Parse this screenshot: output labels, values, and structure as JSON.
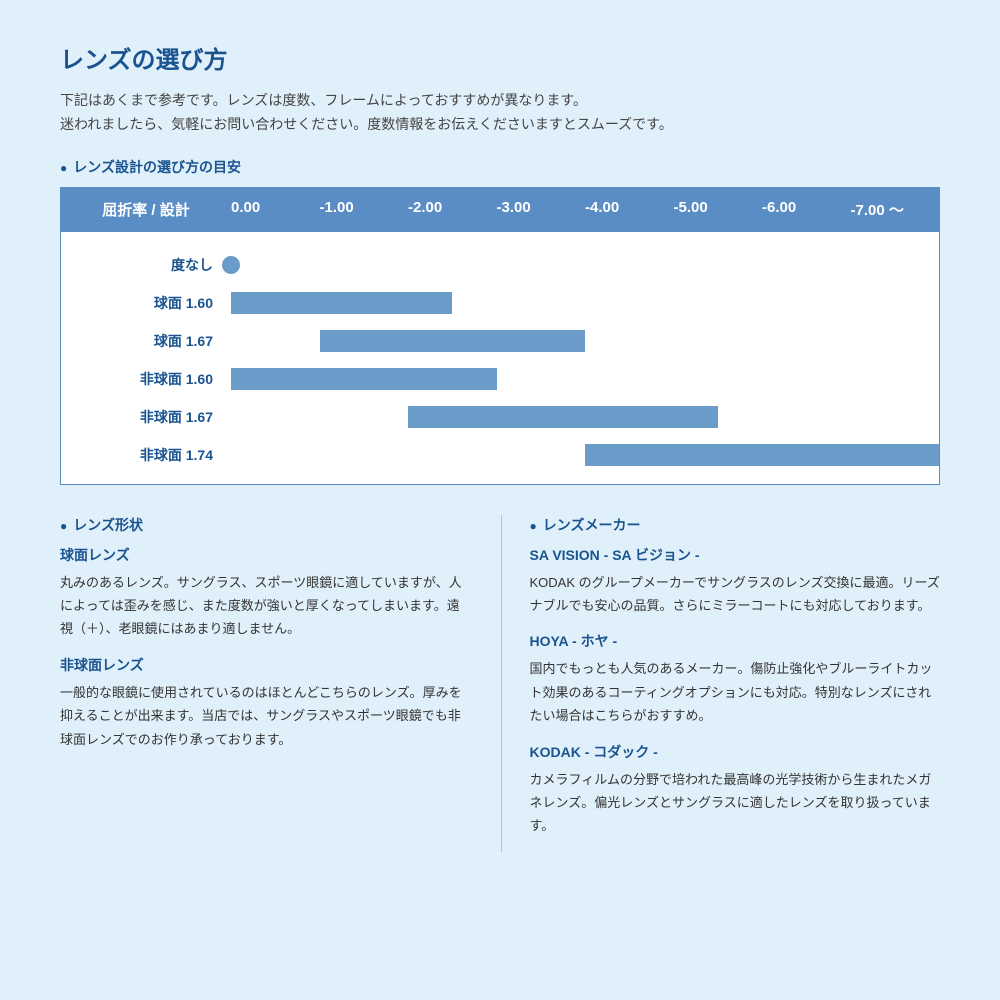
{
  "title": "レンズの選び方",
  "intro_line1": "下記はあくまで参考です。レンズは度数、フレームによっておすすめが異なります。",
  "intro_line2": "迷われましたら、気軽にお問い合わせください。度数情報をお伝えくださいますとスムーズです。",
  "chart_label": "レンズ設計の選び方の目安",
  "chart": {
    "header_label": "屈折率 / 設計",
    "columns": [
      "0.00",
      "-1.00",
      "-2.00",
      "-3.00",
      "-4.00",
      "-5.00",
      "-6.00",
      "-7.00 ～"
    ],
    "bar_color": "#6b9bc9",
    "header_bg": "#5a8dc5",
    "rows": [
      {
        "label": "度なし",
        "type": "dot",
        "at": 0
      },
      {
        "label": "球面 1.60",
        "type": "bar",
        "start": 0,
        "end": 2.5
      },
      {
        "label": "球面 1.67",
        "type": "bar",
        "start": 1,
        "end": 4
      },
      {
        "label": "非球面 1.60",
        "type": "bar",
        "start": 0,
        "end": 3
      },
      {
        "label": "非球面 1.67",
        "type": "bar",
        "start": 2,
        "end": 5.5
      },
      {
        "label": "非球面 1.74",
        "type": "bar",
        "start": 4,
        "end": 8
      }
    ],
    "track_units": 8
  },
  "shape_section_label": "レンズ形状",
  "shapes": [
    {
      "title": "球面レンズ",
      "body": "丸みのあるレンズ。サングラス、スポーツ眼鏡に適していますが、人によっては歪みを感じ、また度数が強いと厚くなってしまいます。遠視（＋）、老眼鏡にはあまり適しません。"
    },
    {
      "title": "非球面レンズ",
      "body": "一般的な眼鏡に使用されているのはほとんどこちらのレンズ。厚みを抑えることが出来ます。当店では、サングラスやスポーツ眼鏡でも非球面レンズでのお作り承っております。"
    }
  ],
  "maker_section_label": "レンズメーカー",
  "makers": [
    {
      "title": "SA VISION - SA ビジョン -",
      "body": "KODAK のグループメーカーでサングラスのレンズ交換に最適。リーズナブルでも安心の品質。さらにミラーコートにも対応しております。"
    },
    {
      "title": "HOYA - ホヤ -",
      "body": "国内でもっとも人気のあるメーカー。傷防止強化やブルーライトカット効果のあるコーティングオプションにも対応。特別なレンズにされたい場合はこちらがおすすめ。"
    },
    {
      "title": "KODAK - コダック -",
      "body": "カメラフィルムの分野で培われた最高峰の光学技術から生まれたメガネレンズ。偏光レンズとサングラスに適したレンズを取り扱っています。"
    }
  ]
}
